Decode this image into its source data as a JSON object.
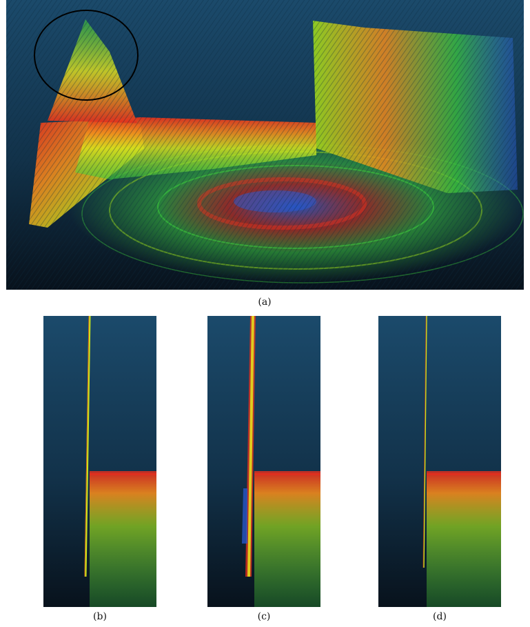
{
  "figure": {
    "panels": [
      {
        "id": "a",
        "label": "(a)"
      },
      {
        "id": "b",
        "label": "(b)"
      },
      {
        "id": "c",
        "label": "(c)"
      },
      {
        "id": "d",
        "label": "(d)"
      }
    ]
  },
  "colors": {
    "background_top": "#1b4a6b",
    "background_bottom": "#08121c",
    "point_red": "#e0301e",
    "point_orange": "#f08a1c",
    "point_yellow": "#e8e61c",
    "point_green": "#3cc83c",
    "point_blue": "#2a5ad0",
    "highlight_ellipse": "#000000"
  }
}
